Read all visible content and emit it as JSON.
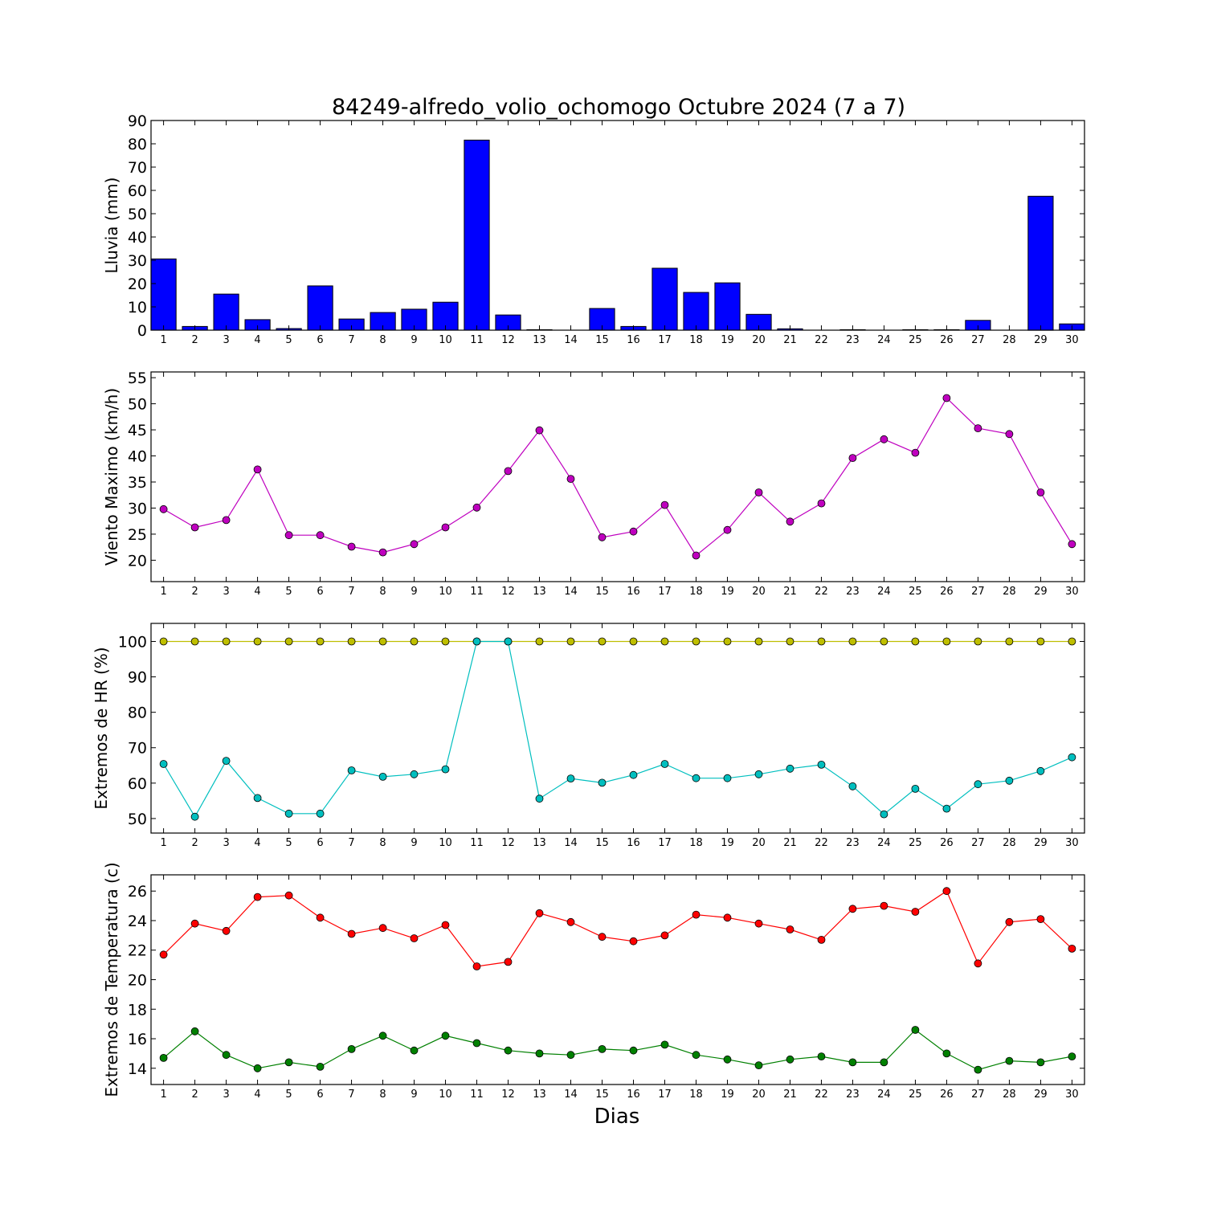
{
  "figure": {
    "title": "84249-alfredo_volio_ochomogo Octubre 2024  (7 a 7)",
    "xlabel": "Dias"
  },
  "chart_data": [
    {
      "type": "bar",
      "ylabel": "Lluvia (mm)",
      "categories": [
        1,
        2,
        3,
        4,
        5,
        6,
        7,
        8,
        9,
        10,
        11,
        12,
        13,
        14,
        15,
        16,
        17,
        18,
        19,
        20,
        21,
        22,
        23,
        24,
        25,
        26,
        27,
        28,
        29,
        30
      ],
      "ylim": [
        0,
        90
      ],
      "yticks": [
        0,
        10,
        20,
        30,
        40,
        50,
        60,
        70,
        80,
        90
      ],
      "series": [
        {
          "color": "#0000ff",
          "values": [
            30.6,
            1.6,
            15.5,
            4.5,
            0.7,
            19.0,
            4.8,
            7.6,
            9.0,
            12.0,
            81.6,
            6.5,
            0.2,
            0.0,
            9.3,
            1.6,
            26.6,
            16.2,
            20.3,
            6.8,
            0.6,
            0.0,
            0.2,
            0.0,
            0.2,
            0.2,
            4.2,
            0.0,
            57.5,
            2.7
          ]
        }
      ],
      "grid": false
    },
    {
      "type": "line",
      "ylabel": "Viento Maximo (km/h)",
      "x": [
        1,
        2,
        3,
        4,
        5,
        6,
        7,
        8,
        9,
        10,
        11,
        12,
        13,
        14,
        15,
        16,
        17,
        18,
        19,
        20,
        21,
        22,
        23,
        24,
        25,
        26,
        27,
        28,
        29,
        30
      ],
      "ylim": [
        15.9,
        56.1
      ],
      "yticks": [
        20,
        25,
        30,
        35,
        40,
        45,
        50,
        55
      ],
      "series": [
        {
          "color": "#bf00bf",
          "values": [
            29.8,
            26.3,
            27.7,
            37.4,
            24.8,
            24.8,
            22.6,
            21.5,
            23.1,
            26.3,
            30.1,
            37.1,
            44.9,
            35.6,
            24.4,
            25.5,
            30.6,
            20.9,
            25.8,
            33.0,
            27.4,
            30.9,
            39.6,
            43.2,
            40.6,
            51.1,
            45.3,
            44.2,
            33.0,
            23.1
          ]
        }
      ],
      "grid": false
    },
    {
      "type": "line",
      "ylabel": "Extremos de HR (%)",
      "x": [
        1,
        2,
        3,
        4,
        5,
        6,
        7,
        8,
        9,
        10,
        11,
        12,
        13,
        14,
        15,
        16,
        17,
        18,
        19,
        20,
        21,
        22,
        23,
        24,
        25,
        26,
        27,
        28,
        29,
        30
      ],
      "ylim": [
        45.9,
        105.1
      ],
      "yticks": [
        50,
        60,
        70,
        80,
        90,
        100
      ],
      "series": [
        {
          "color": "#bfbf00",
          "values": [
            100,
            100,
            100,
            100,
            100,
            100,
            100,
            100,
            100,
            100,
            100,
            100,
            100,
            100,
            100,
            100,
            100,
            100,
            100,
            100,
            100,
            100,
            100,
            100,
            100,
            100,
            100,
            100,
            100,
            100
          ]
        },
        {
          "color": "#00bfbf",
          "values": [
            65.4,
            50.5,
            66.3,
            55.8,
            51.4,
            51.4,
            63.6,
            61.8,
            62.5,
            63.9,
            100,
            100,
            55.6,
            61.3,
            60.1,
            62.3,
            65.4,
            61.4,
            61.4,
            62.5,
            64.1,
            65.2,
            59.1,
            51.2,
            58.4,
            52.8,
            59.7,
            60.7,
            63.4,
            67.3
          ]
        }
      ],
      "grid": false
    },
    {
      "type": "line",
      "ylabel": "Extremos de Temperatura (c)",
      "x": [
        1,
        2,
        3,
        4,
        5,
        6,
        7,
        8,
        9,
        10,
        11,
        12,
        13,
        14,
        15,
        16,
        17,
        18,
        19,
        20,
        21,
        22,
        23,
        24,
        25,
        26,
        27,
        28,
        29,
        30
      ],
      "ylim": [
        12.9,
        27.1
      ],
      "yticks": [
        14,
        16,
        18,
        20,
        22,
        24,
        26
      ],
      "series": [
        {
          "color": "#ff0000",
          "values": [
            21.7,
            23.8,
            23.3,
            25.6,
            25.7,
            24.2,
            23.1,
            23.5,
            22.8,
            23.7,
            20.9,
            21.2,
            24.5,
            23.9,
            22.9,
            22.6,
            23.0,
            24.4,
            24.2,
            23.8,
            23.4,
            22.7,
            24.8,
            25.0,
            24.6,
            26.0,
            21.1,
            23.9,
            24.1,
            22.1
          ]
        },
        {
          "color": "#008000",
          "values": [
            14.7,
            16.5,
            14.9,
            14.0,
            14.4,
            14.1,
            15.3,
            16.2,
            15.2,
            16.2,
            15.7,
            15.2,
            15.0,
            14.9,
            15.3,
            15.2,
            15.6,
            14.9,
            14.6,
            14.2,
            14.6,
            14.8,
            14.4,
            14.4,
            16.6,
            15.0,
            13.9,
            14.5,
            14.4,
            14.8
          ]
        }
      ],
      "grid": false
    }
  ]
}
